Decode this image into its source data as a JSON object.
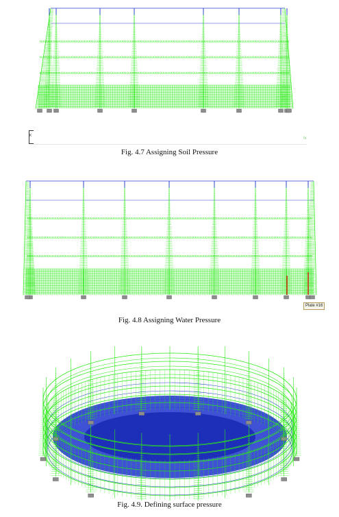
{
  "figures": [
    {
      "caption": "Fig. 4.7 Assigning Soil Pressure",
      "side_marker": "K",
      "corner_marker": "Ix"
    },
    {
      "caption": "Fig. 4.8 Assigning Water Pressure",
      "plate_tag": "Plate #16"
    },
    {
      "caption": "Fig. 4.9. Defining surface pressure"
    }
  ],
  "colors": {
    "load": "#2bea17",
    "frame": "#2a3fd0",
    "support": "#8e8e8e",
    "highlight": "#d2301a"
  }
}
